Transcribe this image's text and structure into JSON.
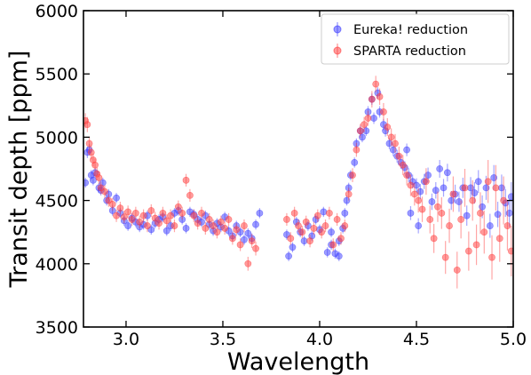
{
  "chart_data": {
    "type": "scatter",
    "xlabel": "Wavelength",
    "ylabel": "Transit depth [ppm]",
    "xlim": [
      2.78,
      5.0
    ],
    "ylim": [
      3500,
      6000
    ],
    "xticks": [
      3.0,
      3.5,
      4.0,
      4.5,
      5.0
    ],
    "xtick_labels": [
      "3.0",
      "3.5",
      "4.0",
      "4.5",
      "5.0"
    ],
    "yticks": [
      3500,
      4000,
      4500,
      5000,
      5500,
      6000
    ],
    "ytick_labels": [
      "3500",
      "4000",
      "4500",
      "5000",
      "5500",
      "6000"
    ],
    "grid": false,
    "legend_position": "top-right",
    "series": [
      {
        "name": "Eureka! reduction",
        "color": "#3a3aff",
        "marker": "circle",
        "points": [
          [
            2.79,
            4640,
            40
          ],
          [
            2.8,
            4880,
            45
          ],
          [
            2.81,
            4900,
            45
          ],
          [
            2.82,
            4700,
            40
          ],
          [
            2.83,
            4660,
            40
          ],
          [
            2.84,
            4720,
            40
          ],
          [
            2.86,
            4600,
            40
          ],
          [
            2.87,
            4580,
            40
          ],
          [
            2.88,
            4640,
            40
          ],
          [
            2.9,
            4500,
            40
          ],
          [
            2.91,
            4550,
            40
          ],
          [
            2.93,
            4420,
            40
          ],
          [
            2.95,
            4520,
            40
          ],
          [
            2.97,
            4400,
            40
          ],
          [
            2.99,
            4340,
            40
          ],
          [
            3.01,
            4300,
            40
          ],
          [
            3.03,
            4360,
            40
          ],
          [
            3.05,
            4330,
            40
          ],
          [
            3.07,
            4290,
            40
          ],
          [
            3.09,
            4310,
            40
          ],
          [
            3.11,
            4380,
            40
          ],
          [
            3.13,
            4270,
            40
          ],
          [
            3.15,
            4320,
            40
          ],
          [
            3.17,
            4350,
            40
          ],
          [
            3.19,
            4370,
            40
          ],
          [
            3.21,
            4260,
            40
          ],
          [
            3.23,
            4300,
            40
          ],
          [
            3.25,
            4400,
            40
          ],
          [
            3.27,
            4420,
            40
          ],
          [
            3.29,
            4350,
            40
          ],
          [
            3.31,
            4280,
            40
          ],
          [
            3.33,
            4410,
            40
          ],
          [
            3.35,
            4390,
            40
          ],
          [
            3.37,
            4350,
            40
          ],
          [
            3.39,
            4330,
            40
          ],
          [
            3.41,
            4380,
            40
          ],
          [
            3.43,
            4310,
            40
          ],
          [
            3.45,
            4260,
            40
          ],
          [
            3.47,
            4320,
            40
          ],
          [
            3.49,
            4290,
            40
          ],
          [
            3.51,
            4370,
            40
          ],
          [
            3.53,
            4260,
            40
          ],
          [
            3.55,
            4220,
            40
          ],
          [
            3.57,
            4300,
            40
          ],
          [
            3.59,
            4250,
            40
          ],
          [
            3.61,
            4190,
            40
          ],
          [
            3.63,
            4240,
            40
          ],
          [
            3.65,
            4200,
            40
          ],
          [
            3.67,
            4310,
            40
          ],
          [
            3.69,
            4400,
            40
          ],
          [
            3.83,
            4230,
            40
          ],
          [
            3.84,
            4060,
            40
          ],
          [
            3.86,
            4130,
            40
          ],
          [
            3.88,
            4330,
            40
          ],
          [
            3.9,
            4250,
            40
          ],
          [
            3.92,
            4180,
            40
          ],
          [
            3.94,
            4300,
            40
          ],
          [
            3.96,
            4220,
            40
          ],
          [
            3.98,
            4350,
            40
          ],
          [
            4.0,
            4270,
            40
          ],
          [
            4.02,
            4410,
            40
          ],
          [
            4.04,
            4090,
            40
          ],
          [
            4.06,
            4150,
            40
          ],
          [
            4.08,
            4080,
            40
          ],
          [
            4.1,
            4180,
            40
          ],
          [
            4.12,
            4280,
            40
          ],
          [
            4.13,
            4400,
            40
          ],
          [
            4.14,
            4500,
            40
          ],
          [
            4.15,
            4600,
            40
          ],
          [
            4.16,
            4700,
            40
          ],
          [
            4.18,
            4800,
            40
          ],
          [
            4.19,
            4950,
            40
          ],
          [
            4.21,
            5050,
            40
          ],
          [
            4.22,
            5000,
            40
          ],
          [
            4.24,
            5050,
            40
          ],
          [
            4.25,
            5200,
            45
          ],
          [
            4.27,
            5300,
            45
          ],
          [
            4.28,
            5150,
            45
          ],
          [
            4.3,
            5350,
            45
          ],
          [
            4.31,
            5200,
            45
          ],
          [
            4.33,
            5100,
            45
          ],
          [
            4.34,
            5050,
            45
          ],
          [
            4.36,
            4950,
            45
          ],
          [
            4.38,
            4900,
            50
          ],
          [
            4.4,
            4850,
            50
          ],
          [
            4.42,
            4800,
            50
          ],
          [
            4.44,
            4760,
            50
          ],
          [
            4.46,
            4700,
            55
          ],
          [
            4.48,
            4650,
            55
          ],
          [
            4.5,
            4620,
            55
          ],
          [
            4.52,
            4570,
            60
          ],
          [
            4.54,
            4650,
            60
          ],
          [
            4.56,
            4700,
            60
          ],
          [
            4.58,
            4490,
            65
          ],
          [
            4.6,
            4580,
            65
          ],
          [
            4.62,
            4750,
            70
          ],
          [
            4.64,
            4600,
            70
          ],
          [
            4.66,
            4720,
            70
          ],
          [
            4.68,
            4500,
            75
          ],
          [
            4.7,
            4550,
            75
          ],
          [
            4.72,
            4490,
            80
          ],
          [
            4.74,
            4600,
            80
          ],
          [
            4.76,
            4380,
            80
          ],
          [
            4.78,
            4600,
            85
          ],
          [
            4.8,
            4560,
            85
          ],
          [
            4.82,
            4650,
            90
          ],
          [
            4.84,
            4450,
            90
          ],
          [
            4.86,
            4600,
            95
          ],
          [
            4.88,
            4300,
            95
          ],
          [
            4.9,
            4680,
            100
          ],
          [
            4.92,
            4390,
            100
          ],
          [
            4.94,
            4600,
            105
          ],
          [
            4.96,
            4480,
            110
          ],
          [
            4.98,
            4400,
            110
          ],
          [
            4.99,
            4530,
            115
          ],
          [
            4.1,
            4060,
            40
          ],
          [
            4.06,
            4250,
            40
          ],
          [
            4.45,
            4900,
            50
          ],
          [
            4.47,
            4400,
            55
          ],
          [
            4.51,
            4300,
            60
          ]
        ]
      },
      {
        "name": "SPARTA reduction",
        "color": "#ff3a3a",
        "marker": "circle",
        "points": [
          [
            2.79,
            5130,
            60
          ],
          [
            2.8,
            5100,
            60
          ],
          [
            2.81,
            4950,
            55
          ],
          [
            2.82,
            4880,
            55
          ],
          [
            2.83,
            4820,
            50
          ],
          [
            2.84,
            4780,
            50
          ],
          [
            2.85,
            4710,
            50
          ],
          [
            2.86,
            4680,
            50
          ],
          [
            2.87,
            4600,
            50
          ],
          [
            2.89,
            4570,
            50
          ],
          [
            2.91,
            4500,
            50
          ],
          [
            2.93,
            4470,
            50
          ],
          [
            2.95,
            4380,
            50
          ],
          [
            2.97,
            4440,
            50
          ],
          [
            2.99,
            4370,
            50
          ],
          [
            3.01,
            4410,
            50
          ],
          [
            3.03,
            4350,
            50
          ],
          [
            3.05,
            4400,
            50
          ],
          [
            3.07,
            4330,
            50
          ],
          [
            3.09,
            4380,
            50
          ],
          [
            3.11,
            4300,
            50
          ],
          [
            3.13,
            4420,
            50
          ],
          [
            3.15,
            4360,
            50
          ],
          [
            3.17,
            4320,
            50
          ],
          [
            3.19,
            4400,
            50
          ],
          [
            3.21,
            4340,
            50
          ],
          [
            3.23,
            4380,
            50
          ],
          [
            3.25,
            4300,
            50
          ],
          [
            3.27,
            4450,
            50
          ],
          [
            3.29,
            4400,
            50
          ],
          [
            3.31,
            4660,
            50
          ],
          [
            3.33,
            4540,
            50
          ],
          [
            3.35,
            4380,
            50
          ],
          [
            3.37,
            4320,
            50
          ],
          [
            3.39,
            4400,
            50
          ],
          [
            3.41,
            4280,
            50
          ],
          [
            3.43,
            4350,
            50
          ],
          [
            3.45,
            4300,
            50
          ],
          [
            3.47,
            4250,
            50
          ],
          [
            3.49,
            4330,
            50
          ],
          [
            3.51,
            4280,
            50
          ],
          [
            3.53,
            4350,
            50
          ],
          [
            3.55,
            4200,
            50
          ],
          [
            3.57,
            4270,
            50
          ],
          [
            3.59,
            4150,
            50
          ],
          [
            3.61,
            4300,
            50
          ],
          [
            3.63,
            4000,
            55
          ],
          [
            3.65,
            4180,
            55
          ],
          [
            3.67,
            4120,
            55
          ],
          [
            3.83,
            4350,
            50
          ],
          [
            3.85,
            4200,
            50
          ],
          [
            3.87,
            4400,
            50
          ],
          [
            3.89,
            4300,
            50
          ],
          [
            3.91,
            4250,
            50
          ],
          [
            3.93,
            4330,
            50
          ],
          [
            3.95,
            4180,
            50
          ],
          [
            3.97,
            4280,
            50
          ],
          [
            3.99,
            4380,
            50
          ],
          [
            4.01,
            4250,
            50
          ],
          [
            4.03,
            4300,
            50
          ],
          [
            4.05,
            4400,
            50
          ],
          [
            4.07,
            4150,
            50
          ],
          [
            4.09,
            4350,
            50
          ],
          [
            4.11,
            4200,
            50
          ],
          [
            4.13,
            4300,
            50
          ],
          [
            4.15,
            4550,
            50
          ],
          [
            4.17,
            4700,
            55
          ],
          [
            4.19,
            4900,
            55
          ],
          [
            4.21,
            5050,
            55
          ],
          [
            4.23,
            5100,
            60
          ],
          [
            4.25,
            5150,
            60
          ],
          [
            4.27,
            5300,
            65
          ],
          [
            4.29,
            5420,
            65
          ],
          [
            4.31,
            5320,
            65
          ],
          [
            4.33,
            5200,
            70
          ],
          [
            4.35,
            5080,
            70
          ],
          [
            4.37,
            5000,
            70
          ],
          [
            4.39,
            4950,
            75
          ],
          [
            4.41,
            4850,
            75
          ],
          [
            4.43,
            4780,
            80
          ],
          [
            4.45,
            4700,
            80
          ],
          [
            4.47,
            4620,
            85
          ],
          [
            4.49,
            4550,
            90
          ],
          [
            4.51,
            4500,
            95
          ],
          [
            4.53,
            4430,
            100
          ],
          [
            4.55,
            4650,
            105
          ],
          [
            4.57,
            4350,
            110
          ],
          [
            4.59,
            4200,
            115
          ],
          [
            4.61,
            4450,
            120
          ],
          [
            4.63,
            4400,
            125
          ],
          [
            4.65,
            4050,
            130
          ],
          [
            4.67,
            4300,
            135
          ],
          [
            4.69,
            4550,
            140
          ],
          [
            4.71,
            3950,
            145
          ],
          [
            4.73,
            4350,
            150
          ],
          [
            4.75,
            4600,
            150
          ],
          [
            4.77,
            4100,
            155
          ],
          [
            4.79,
            4500,
            160
          ],
          [
            4.81,
            4150,
            160
          ],
          [
            4.83,
            4400,
            165
          ],
          [
            4.85,
            4250,
            170
          ],
          [
            4.87,
            4650,
            170
          ],
          [
            4.89,
            4050,
            175
          ],
          [
            4.91,
            4600,
            180
          ],
          [
            4.93,
            4200,
            185
          ],
          [
            4.95,
            4500,
            190
          ],
          [
            4.97,
            4300,
            195
          ],
          [
            4.99,
            4100,
            200
          ]
        ]
      }
    ]
  }
}
